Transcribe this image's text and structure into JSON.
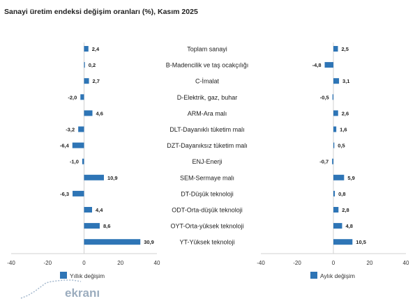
{
  "chart_data": {
    "type": "bar",
    "orientation": "horizontal",
    "title": "Sanayi üretim endeksi değişim oranları (%), Kasım 2025",
    "categories": [
      "Toplam sanayi",
      "B-Madencilik ve taş ocakçılığı",
      "C-İmalat",
      "D-Elektrik, gaz, buhar",
      "ARM-Ara malı",
      "DLT-Dayanıklı tüketim malı",
      "DZT-Dayanıksız tüketim malı",
      "ENJ-Enerji",
      "SEM-Sermaye malı",
      "DT-Düşük teknoloji",
      "ODT-Orta-düşük teknoloji",
      "OYT-Orta-yüksek teknoloji",
      "YT-Yüksek teknoloji"
    ],
    "series": [
      {
        "name": "Yıllık değişim",
        "values": [
          2.4,
          0.2,
          2.7,
          -2.0,
          4.6,
          -3.2,
          -6.4,
          -1.0,
          10.9,
          -6.3,
          4.4,
          8.6,
          30.9
        ],
        "labels": [
          "2,4",
          "0,2",
          "2,7",
          "-2,0",
          "4,6",
          "-3,2",
          "-6,4",
          "-1,0",
          "10,9",
          "-6,3",
          "4,4",
          "8,6",
          "30,9"
        ]
      },
      {
        "name": "Aylık değişim",
        "values": [
          2.5,
          -4.8,
          3.1,
          -0.5,
          2.6,
          1.6,
          0.5,
          -0.7,
          5.9,
          0.8,
          2.8,
          4.8,
          10.5
        ],
        "labels": [
          "2,5",
          "-4,8",
          "3,1",
          "-0,5",
          "2,6",
          "1,6",
          "0,5",
          "-0,7",
          "5,9",
          "0,8",
          "2,8",
          "4,8",
          "10,5"
        ]
      }
    ],
    "xlim": [
      -40,
      40
    ],
    "xticks": [
      -40,
      -20,
      0,
      20,
      40
    ],
    "bar_color": "#2e75b6",
    "legend_position": "bottom"
  },
  "watermark": {
    "text": "ekranı"
  }
}
